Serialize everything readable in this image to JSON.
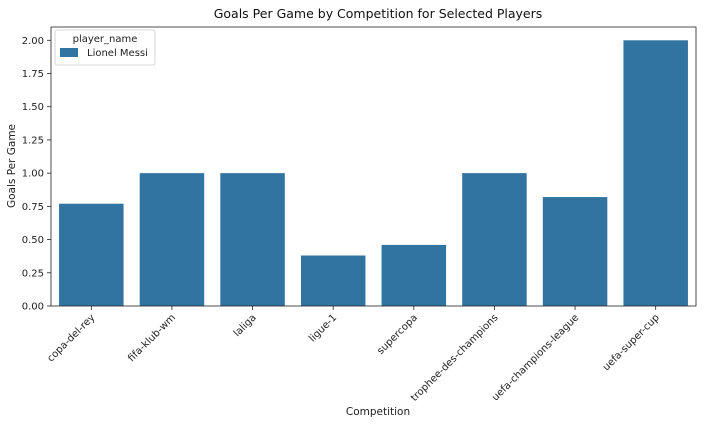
{
  "chart_data": {
    "type": "bar",
    "title": "Goals Per Game by Competition for Selected Players",
    "xlabel": "Competition",
    "ylabel": "Goals Per Game",
    "categories": [
      "copa-del-rey",
      "fifa-klub-wm",
      "laliga",
      "ligue-1",
      "supercopa",
      "trophee-des-champions",
      "uefa-champions-league",
      "uefa-super-cup"
    ],
    "series": [
      {
        "name": "Lionel Messi",
        "values": [
          0.77,
          1.0,
          1.0,
          0.38,
          0.46,
          1.0,
          0.82,
          2.0
        ]
      }
    ],
    "ylim": [
      0,
      2.1
    ],
    "yticks": [
      0.0,
      0.25,
      0.5,
      0.75,
      1.0,
      1.25,
      1.5,
      1.75,
      2.0
    ],
    "ytick_labels": [
      "0.00",
      "0.25",
      "0.50",
      "0.75",
      "1.00",
      "1.25",
      "1.50",
      "1.75",
      "2.00"
    ],
    "legend": {
      "title": "player_name",
      "position": "top-left"
    },
    "grid": false,
    "colors": {
      "bar": "#3274a1"
    }
  }
}
